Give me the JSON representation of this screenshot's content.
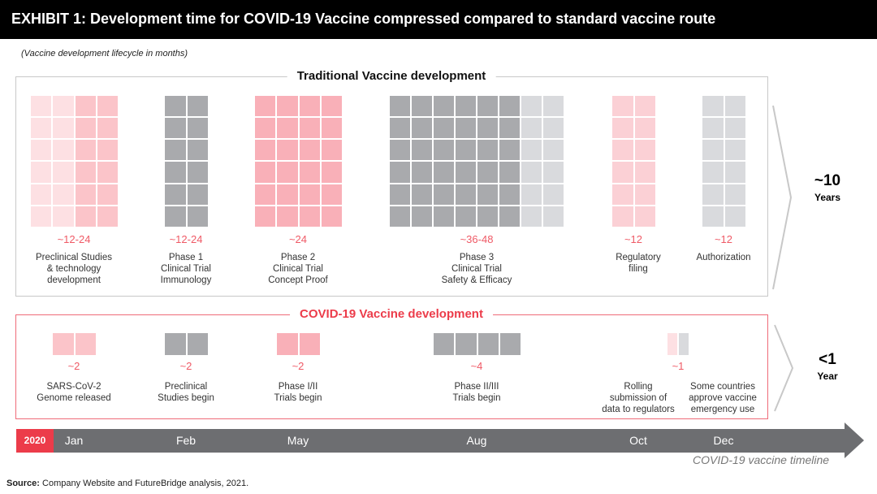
{
  "header": {
    "title": "EXHIBIT 1: Development time for COVID-19 Vaccine compressed compared to standard vaccine route"
  },
  "subtitle": "(Vaccine development lifecycle in months)",
  "colors": {
    "pink_light": "#fde0e3",
    "pink": "#fbc4c9",
    "pink_strong": "#f9b0b8",
    "gray_dark": "#a9aaad",
    "gray_light": "#d9dadd",
    "red": "#ec3c4a",
    "timeline": "#6d6e71"
  },
  "traditional": {
    "title": "Traditional Vaccine development",
    "phases": [
      {
        "duration": "~12-24",
        "label": "Preclinical Studies\n& technology\ndevelopment"
      },
      {
        "duration": "~12-24",
        "label": "Phase 1\nClinical Trial\nImmunology"
      },
      {
        "duration": "~24",
        "label": "Phase 2\nClinical Trial\nConcept Proof"
      },
      {
        "duration": "~36-48",
        "label": "Phase 3\nClinical Trial\nSafety & Efficacy"
      },
      {
        "duration": "~12",
        "label": "Regulatory\nfiling"
      },
      {
        "duration": "~12",
        "label": "Authorization"
      }
    ],
    "total": {
      "value": "~10",
      "unit": "Years"
    }
  },
  "covid": {
    "title": "COVID-19 Vaccine development",
    "phases": [
      {
        "duration": "~2",
        "label": "SARS-CoV-2\nGenome released"
      },
      {
        "duration": "~2",
        "label": "Preclinical\nStudies begin"
      },
      {
        "duration": "~2",
        "label": "Phase I/II\nTrials begin"
      },
      {
        "duration": "~4",
        "label": "Phase II/III\nTrials begin"
      },
      {
        "duration": "",
        "label": "Rolling\nsubmission of\ndata to regulators"
      },
      {
        "duration": "~1",
        "label": "Some countries\napprove vaccine\nemergency use"
      }
    ],
    "total": {
      "value": "<1",
      "unit": "Year"
    }
  },
  "timeline": {
    "year": "2020",
    "months": [
      "Jan",
      "Feb",
      "May",
      "Aug",
      "Oct",
      "Dec"
    ],
    "caption": "COVID-19 vaccine timeline"
  },
  "source": {
    "bold": "Source:",
    "text": " Company Website and FutureBridge analysis, 2021."
  }
}
